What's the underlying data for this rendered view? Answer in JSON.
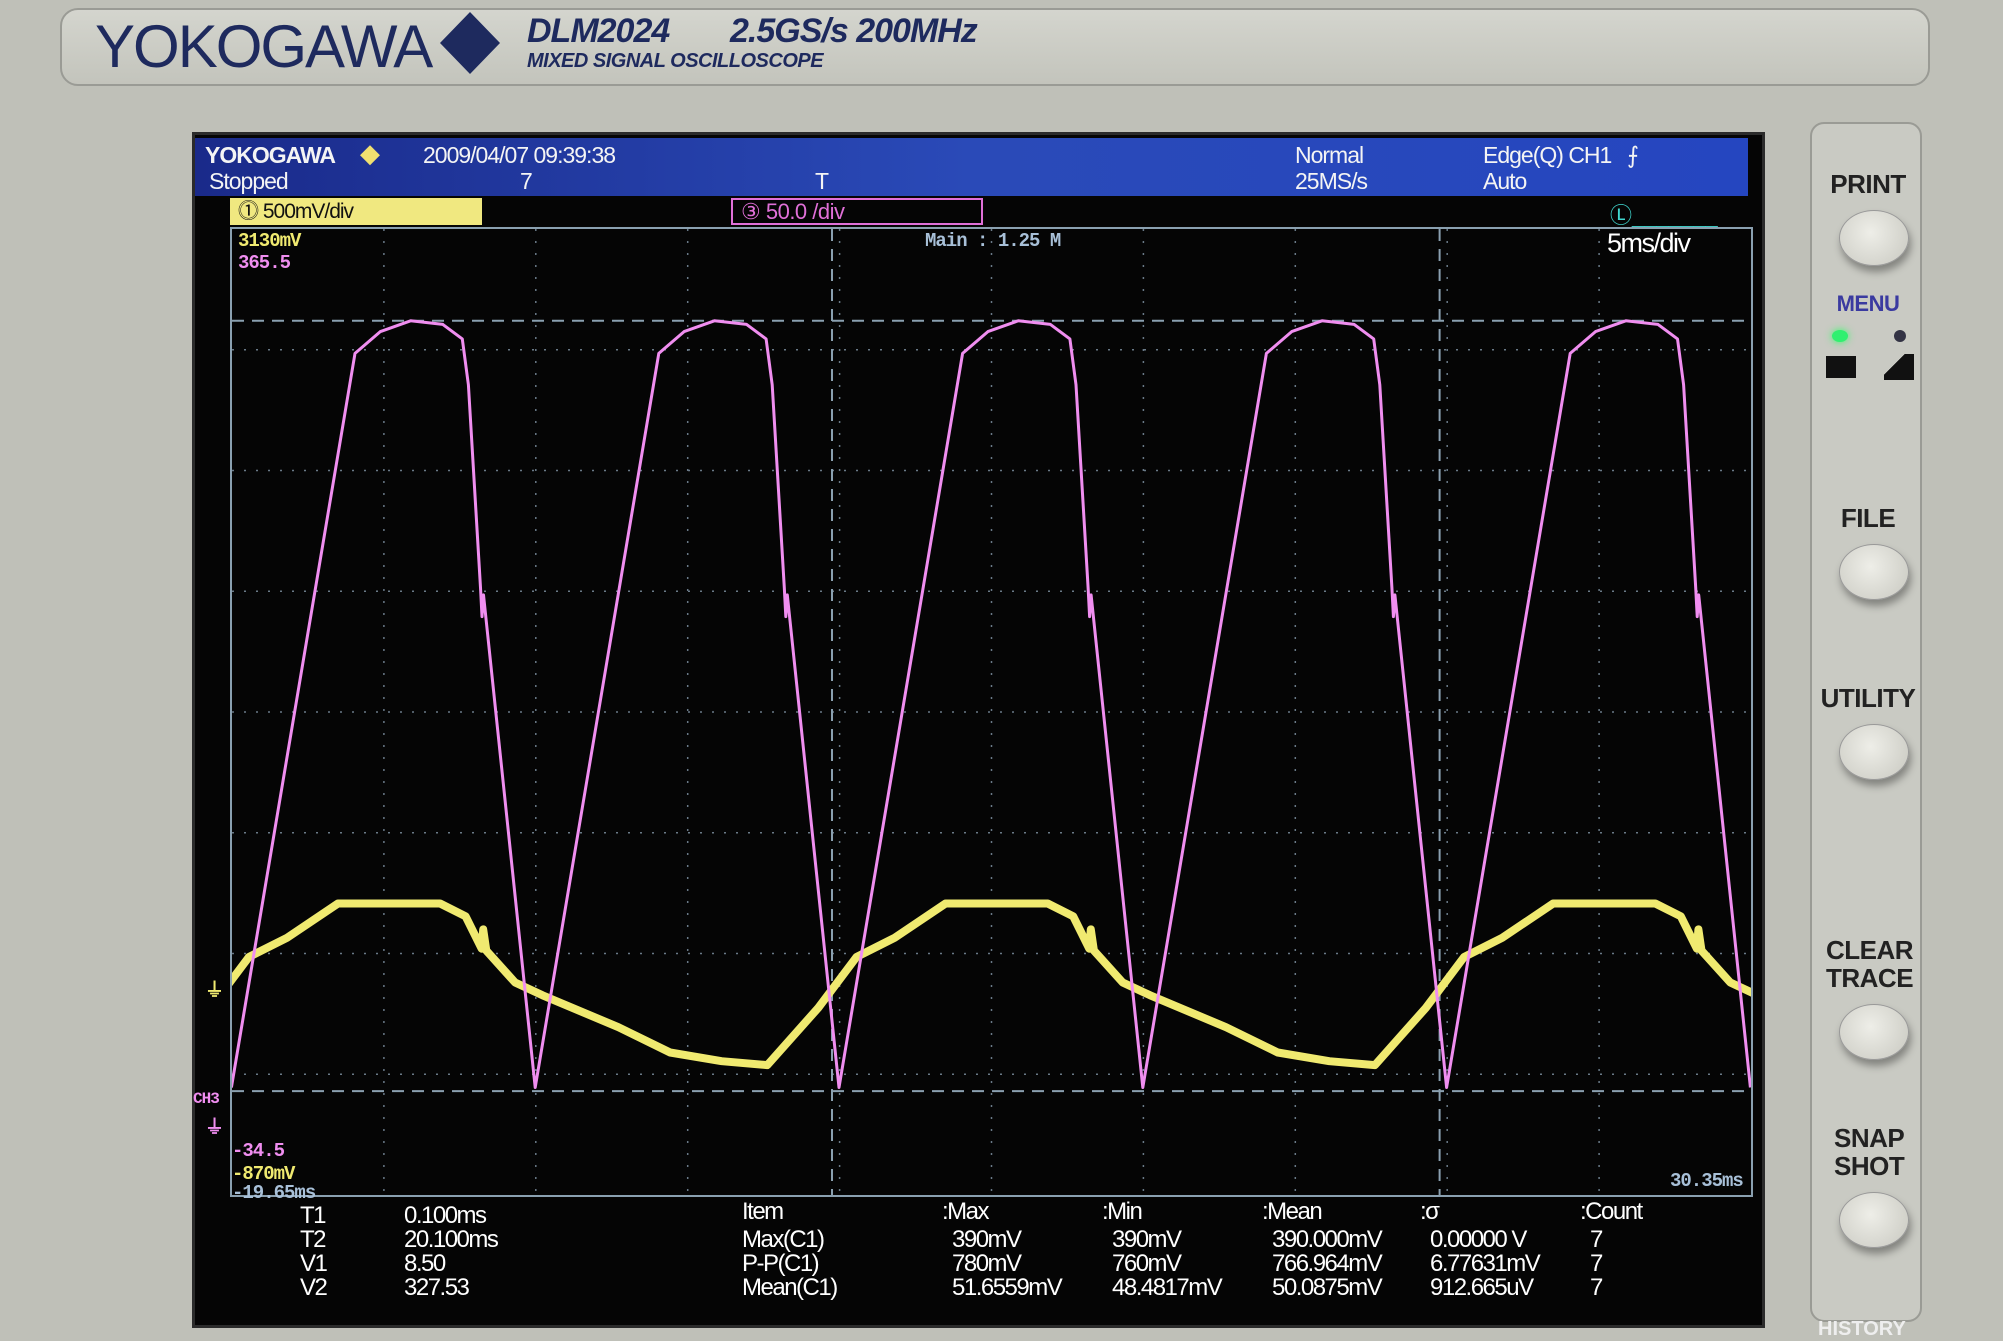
{
  "bezel": {
    "brand": "YOKOGAWA",
    "model": "DLM2024",
    "spec": "2.5GS/s 200MHz",
    "subtitle": "MIXED SIGNAL OSCILLOSCOPE"
  },
  "status": {
    "brand": "YOKOGAWA",
    "datetime": "2009/04/07 09:39:38",
    "state": "Stopped",
    "count": "7",
    "trigger_marker": "T",
    "mode": "Normal",
    "sample_rate": "25MS/s",
    "trigger": "Edge(Q) CH1",
    "trigger_mode": "Auto"
  },
  "channels": {
    "ch1_scale": "500mV/div",
    "ch3_scale": "50.0 /div",
    "ch1_num": "1",
    "ch3_num": "3",
    "logic_num": "L"
  },
  "display": {
    "ch1_top": "3130mV",
    "ch3_top": "365.5",
    "ch3_bottom": "-34.5",
    "ch1_bottom": "-870mV",
    "time_left": "-19.65ms",
    "time_right": "30.35ms",
    "main": "Main : 1.25 M",
    "timebase": "5ms/div",
    "ch3_label": "CH3",
    "colors": {
      "ch1": "#f0ea70",
      "ch3": "#f08ef0",
      "grid": "#6a7a88",
      "cursor": "#8aa0b0"
    }
  },
  "cursors": {
    "labels": [
      "T1",
      "T2",
      "V1",
      "V2"
    ],
    "values": [
      "0.100ms",
      "20.100ms",
      "8.50",
      "327.53"
    ],
    "t1_ms": 0.1,
    "t2_ms": 20.1,
    "v1": 8.5,
    "v2": 327.53
  },
  "measurements": {
    "headers": [
      "Item",
      ":Max",
      ":Min",
      ":Mean",
      ":σ",
      ":Count"
    ],
    "rows": [
      [
        "Max(C1)",
        "390mV",
        "390mV",
        "390.000mV",
        "0.00000 V",
        "7"
      ],
      [
        "P-P(C1)",
        "780mV",
        "760mV",
        "766.964mV",
        "6.77631mV",
        "7"
      ],
      [
        "Mean(C1)",
        "51.6559mV",
        "48.4817mV",
        "50.0875mV",
        "912.665uV",
        "7"
      ]
    ]
  },
  "chart_data": {
    "type": "line",
    "x_range_ms": [
      -19.65,
      30.35
    ],
    "ch1_range_mV": [
      -870,
      3130
    ],
    "ch3_range": [
      -34.5,
      365.5
    ],
    "grid": true,
    "series": [
      {
        "channel": "CH1",
        "period_ms": 20,
        "phase_ms": -2.03,
        "points": [
          [
            0,
            -332
          ],
          [
            1.68,
            -95
          ],
          [
            2.94,
            116
          ],
          [
            4.19,
            195
          ],
          [
            5.87,
            337
          ],
          [
            9.23,
            337
          ],
          [
            10.07,
            284
          ],
          [
            10.6,
            150
          ],
          [
            10.65,
            230
          ],
          [
            10.75,
            142
          ],
          [
            11.7,
            10
          ],
          [
            12.6,
            -43
          ],
          [
            15.1,
            -175
          ],
          [
            16.8,
            -280
          ],
          [
            18.5,
            -316
          ],
          [
            20,
            -332
          ]
        ]
      },
      {
        "channel": "CH3",
        "period_ms": 10,
        "phase_ms": -9.67,
        "points": [
          [
            0,
            10
          ],
          [
            4.07,
            314
          ],
          [
            4.9,
            323
          ],
          [
            5.9,
            327.5
          ],
          [
            6.96,
            326
          ],
          [
            7.6,
            320
          ],
          [
            7.8,
            301
          ],
          [
            8.2,
            217
          ],
          [
            8.25,
            205
          ],
          [
            8.3,
            214
          ],
          [
            10,
            10
          ]
        ]
      }
    ]
  },
  "panel": {
    "buttons": [
      "PRINT",
      "FILE",
      "UTILITY",
      "CLEAR TRACE",
      "SNAP SHOT"
    ],
    "menu": "MENU",
    "history": "HISTORY"
  }
}
